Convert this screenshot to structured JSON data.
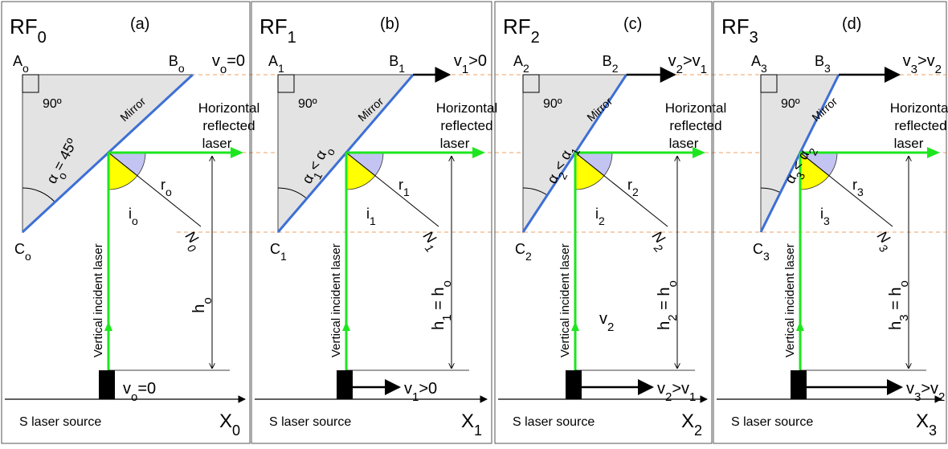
{
  "colors": {
    "laser": "#1ee61e",
    "mirror": "#3d6fd6",
    "triangle_fill": "#e3e3e3",
    "angle_r": "#c4c4f2",
    "angle_i": "#ffff00",
    "guide": "#f0a060",
    "panel_border": "#555555"
  },
  "panels": [
    {
      "rf": "RF",
      "rf_sub": "0",
      "letter": "(a)",
      "a": "A",
      "a_sub": "o",
      "b": "B",
      "b_sub": "o",
      "c": "C",
      "c_sub": "o",
      "right_angle": "90º",
      "alpha_main": "α",
      "alpha_sub": "o",
      "alpha_rel": "= 45º",
      "alpha_sub2": "",
      "mirror": "Mirror",
      "horiz_1": "Horizontal",
      "horiz_2": "reflected",
      "horiz_3": "laser",
      "r": "r",
      "r_sub": "o",
      "i": "i",
      "i_sub": "o",
      "n": "N",
      "n_sub": "0",
      "vertical": "Vertical incident laser",
      "h": "h",
      "h_sub": "o",
      "h_eq": "",
      "top_v": "v",
      "top_v_sub": "o",
      "top_v_rel": "=0",
      "top_v_sub2": "",
      "bot_v": "v",
      "bot_v_sub": "o",
      "bot_v_rel": "=0",
      "bot_v_sub2": "",
      "mid_v": "",
      "mid_v_sub": "",
      "source": "S laser source",
      "x": "X",
      "x_sub": "0"
    },
    {
      "rf": "RF",
      "rf_sub": "1",
      "letter": "(b)",
      "a": "A",
      "a_sub": "1",
      "b": "B",
      "b_sub": "1",
      "c": "C",
      "c_sub": "1",
      "right_angle": "90º",
      "alpha_main": "α",
      "alpha_sub": "1",
      "alpha_rel": "< α",
      "alpha_sub2": "o",
      "mirror": "Mirror",
      "horiz_1": "Horizontal",
      "horiz_2": "reflected",
      "horiz_3": "laser",
      "r": "r",
      "r_sub": "1",
      "i": "i",
      "i_sub": "1",
      "n": "N",
      "n_sub": "1",
      "vertical": "Vertical incident laser",
      "h": "h",
      "h_sub": "1",
      "h_eq": " = h",
      "h_sub2": "o",
      "top_v": "v",
      "top_v_sub": "1",
      "top_v_rel": ">0",
      "top_v_sub2": "",
      "bot_v": "v",
      "bot_v_sub": "1",
      "bot_v_rel": ">0",
      "bot_v_sub2": "",
      "mid_v": "",
      "mid_v_sub": "",
      "source": "S laser source",
      "x": "X",
      "x_sub": "1"
    },
    {
      "rf": "RF",
      "rf_sub": "2",
      "letter": "(c)",
      "a": "A",
      "a_sub": "2",
      "b": "B",
      "b_sub": "2",
      "c": "C",
      "c_sub": "2",
      "right_angle": "90º",
      "alpha_main": "α",
      "alpha_sub": "2",
      "alpha_rel": "< α",
      "alpha_sub2": "1",
      "mirror": "Mirror",
      "horiz_1": "Horizontal",
      "horiz_2": "reflected",
      "horiz_3": "laser",
      "r": "r",
      "r_sub": "2",
      "i": "i",
      "i_sub": "2",
      "n": "N",
      "n_sub": "2",
      "vertical": "Vertical incident laser",
      "h": "h",
      "h_sub": "2",
      "h_eq": " = h",
      "h_sub2": "o",
      "top_v": "v",
      "top_v_sub": "2",
      "top_v_rel": ">v",
      "top_v_sub2": "1",
      "bot_v": "v",
      "bot_v_sub": "2",
      "bot_v_rel": ">v",
      "bot_v_sub2": "1",
      "mid_v": "v",
      "mid_v_sub": "2",
      "source": "S laser source",
      "x": "X",
      "x_sub": "2"
    },
    {
      "rf": "RF",
      "rf_sub": "3",
      "letter": "(d)",
      "a": "A",
      "a_sub": "3",
      "b": "B",
      "b_sub": "3",
      "c": "C",
      "c_sub": "3",
      "right_angle": "90º",
      "alpha_main": "α",
      "alpha_sub": "3",
      "alpha_rel": "< α",
      "alpha_sub2": "2",
      "mirror": "Mirror",
      "horiz_1": "Horizontal",
      "horiz_2": "reflected",
      "horiz_3": "laser",
      "r": "r",
      "r_sub": "3",
      "i": "i",
      "i_sub": "3",
      "n": "N",
      "n_sub": "3",
      "vertical": "Vertical incident laser",
      "h": "h",
      "h_sub": "3",
      "h_eq": " = h",
      "h_sub2": "o",
      "top_v": "v",
      "top_v_sub": "3",
      "top_v_rel": ">v",
      "top_v_sub2": "2",
      "bot_v": "v",
      "bot_v_sub": "3",
      "bot_v_rel": ">v",
      "bot_v_sub2": "2",
      "mid_v": "",
      "mid_v_sub": "",
      "source": "S laser source",
      "x": "X",
      "x_sub": "3"
    }
  ]
}
